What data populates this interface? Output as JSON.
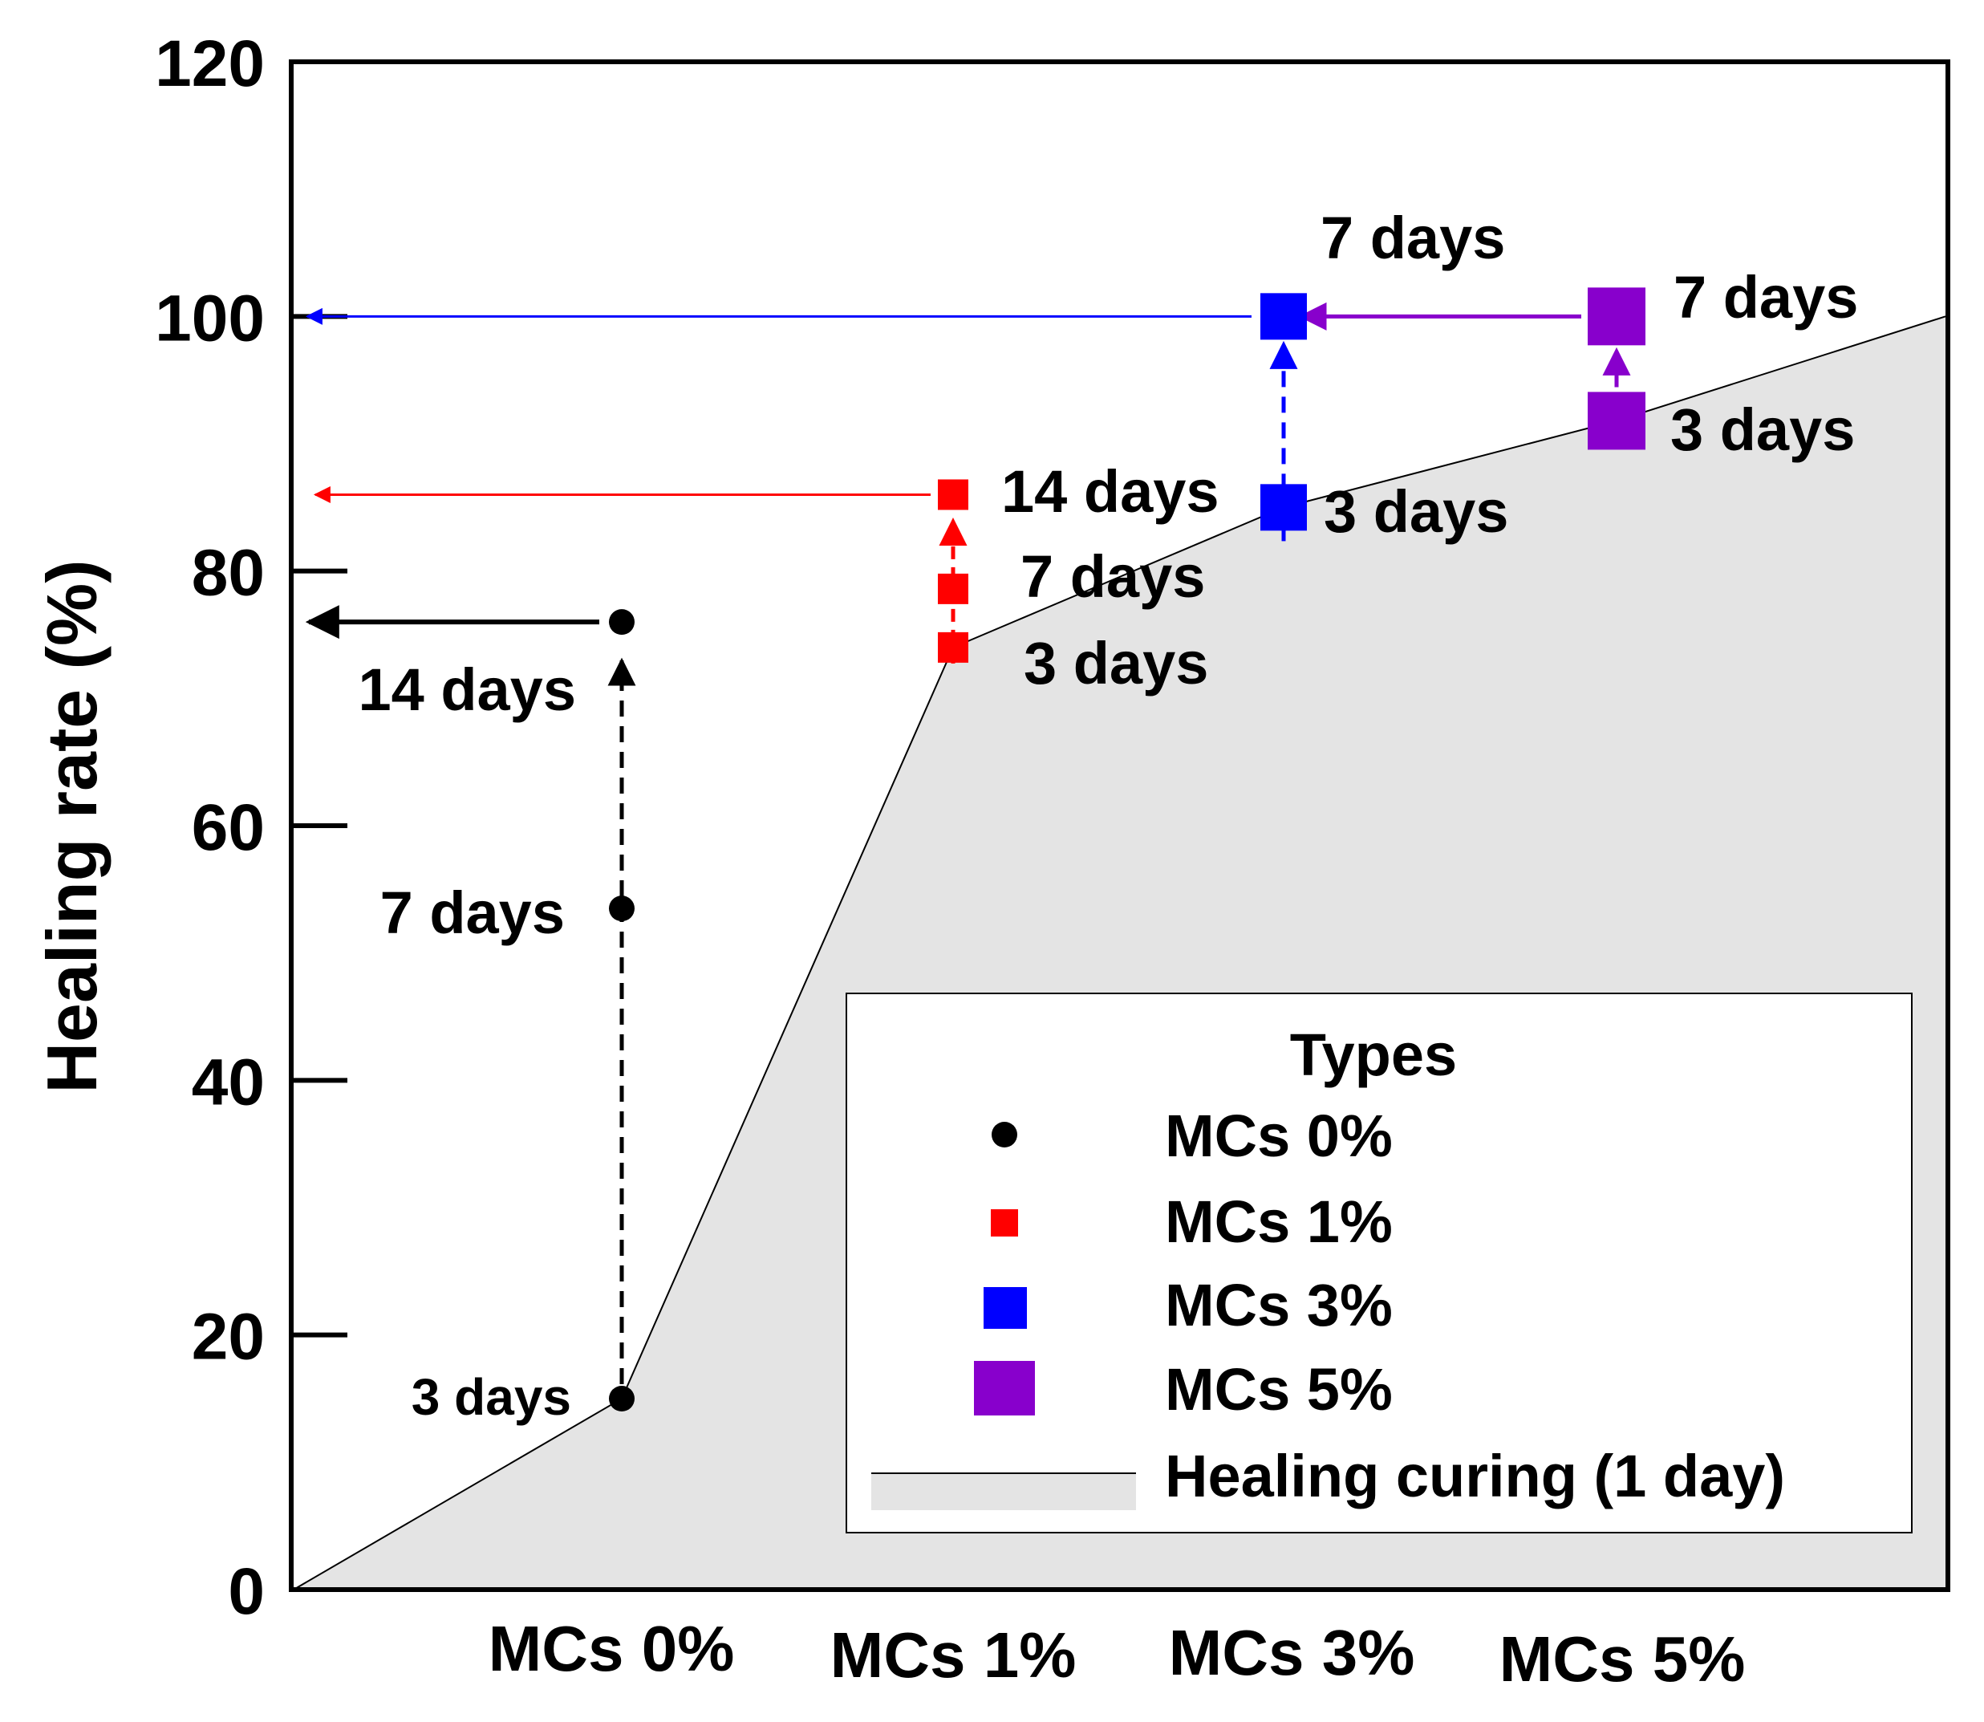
{
  "chart_data": {
    "type": "scatter",
    "title": "",
    "xlabel": "",
    "ylabel": "Healing rate (%)",
    "ylim": [
      0,
      120
    ],
    "yticks": [
      "0",
      "20",
      "40",
      "60",
      "80",
      "100",
      "120"
    ],
    "categories": [
      "MCs 0%",
      "MCs 1%",
      "MCs 3%",
      "MCs 5%"
    ],
    "colors": {
      "MCs 0%": "#000000",
      "MCs 1%": "#ff0000",
      "MCs 3%": "#0000ff",
      "MCs 5%": "#8800cc",
      "area": "#e4e4e4"
    },
    "series": [
      {
        "name": "MCs 0%",
        "category": "MCs 0%",
        "marker": "circle",
        "points": [
          {
            "day_label": "3 days",
            "value": 15
          },
          {
            "day_label": "7 days",
            "value": 53.5
          },
          {
            "day_label": "14 days",
            "value": 76
          }
        ]
      },
      {
        "name": "MCs 1%",
        "category": "MCs 1%",
        "marker": "square",
        "points": [
          {
            "day_label": "3 days",
            "value": 74
          },
          {
            "day_label": "7 days",
            "value": 78.6
          },
          {
            "day_label": "14 days",
            "value": 86
          }
        ]
      },
      {
        "name": "MCs 3%",
        "category": "MCs 3%",
        "marker": "square",
        "points": [
          {
            "day_label": "3 days",
            "value": 85
          },
          {
            "day_label": "7 days",
            "value": 100
          }
        ]
      },
      {
        "name": "MCs 5%",
        "category": "MCs 5%",
        "marker": "square",
        "points": [
          {
            "day_label": "3 days",
            "value": 91.8
          },
          {
            "day_label": "7 days",
            "value": 100
          }
        ]
      }
    ],
    "area_series": {
      "name": "Healing curing (1 day)",
      "points": [
        {
          "x": 0,
          "value": 0
        },
        {
          "x": 1,
          "value": 15
        },
        {
          "x": 2,
          "value": 74
        },
        {
          "x": 3,
          "value": 85
        },
        {
          "x": 4,
          "value": 91.8
        },
        {
          "x": 5,
          "value": 100
        }
      ]
    },
    "legend": {
      "title": "Types",
      "position": "bottom-right",
      "entries": [
        "MCs 0%",
        "MCs 1%",
        "MCs 3%",
        "MCs 5%",
        "Healing curing (1 day)"
      ]
    }
  }
}
